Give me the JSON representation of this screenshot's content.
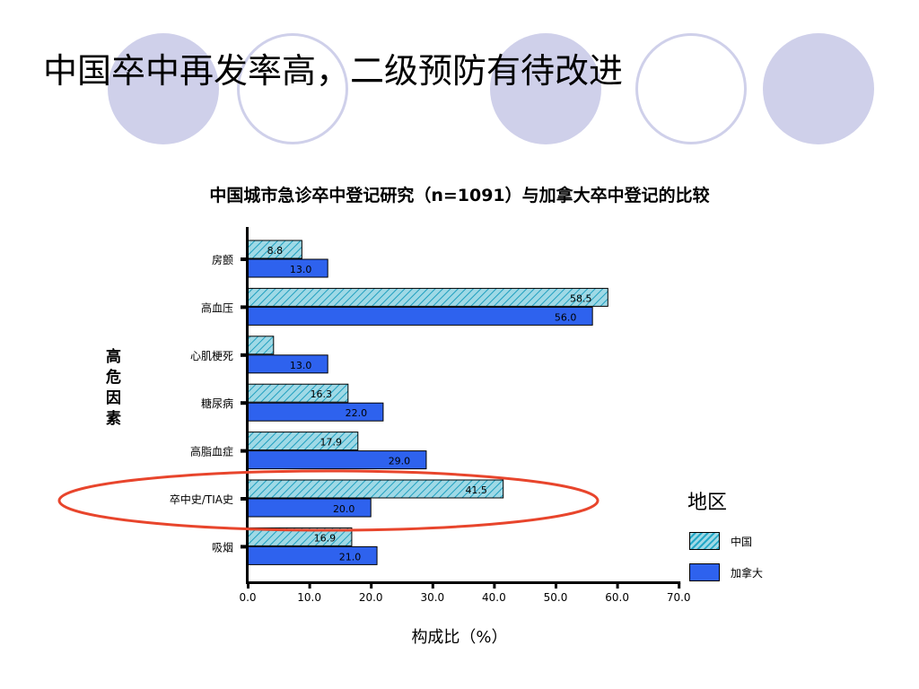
{
  "slide": {
    "title": "中国卒中再发率高，二级预防有待改进",
    "decor_color": "#cfd0ea"
  },
  "chart_data": {
    "type": "bar",
    "orientation": "horizontal",
    "title": "中国城市急诊卒中登记研究（n=1091）与加拿大卒中登记的比较",
    "xlabel": "构成比（%）",
    "ylabel": "高危因素",
    "categories": [
      "房颤",
      "高血压",
      "心肌梗死",
      "糖尿病",
      "高脂血症",
      "卒中史/TIA史",
      "吸烟"
    ],
    "series": [
      {
        "name": "中国",
        "values": [
          8.8,
          58.5,
          4.2,
          16.3,
          17.9,
          41.5,
          16.9
        ],
        "value_labels": [
          "8.8",
          "58.5",
          "",
          "16.3",
          "17.9",
          "41.5",
          "16.9"
        ],
        "color": "#9fd9e6",
        "pattern": "hatched"
      },
      {
        "name": "加拿大",
        "values": [
          13.0,
          56.0,
          13.0,
          22.0,
          29.0,
          20.0,
          21.0
        ],
        "value_labels": [
          "13.0",
          "56.0",
          "13.0",
          "22.0",
          "29.0",
          "20.0",
          "21.0"
        ],
        "color": "#2e62ee",
        "pattern": "solid"
      }
    ],
    "xlim": [
      0,
      70
    ],
    "xticks": [
      "0.0",
      "10.0",
      "20.0",
      "30.0",
      "40.0",
      "50.0",
      "60.0",
      "70.0"
    ],
    "grid": false,
    "legend": {
      "title": "地区",
      "position": "right"
    },
    "highlight": {
      "category": "卒中史/TIA史",
      "color": "#e8452c",
      "shape": "ellipse"
    }
  }
}
